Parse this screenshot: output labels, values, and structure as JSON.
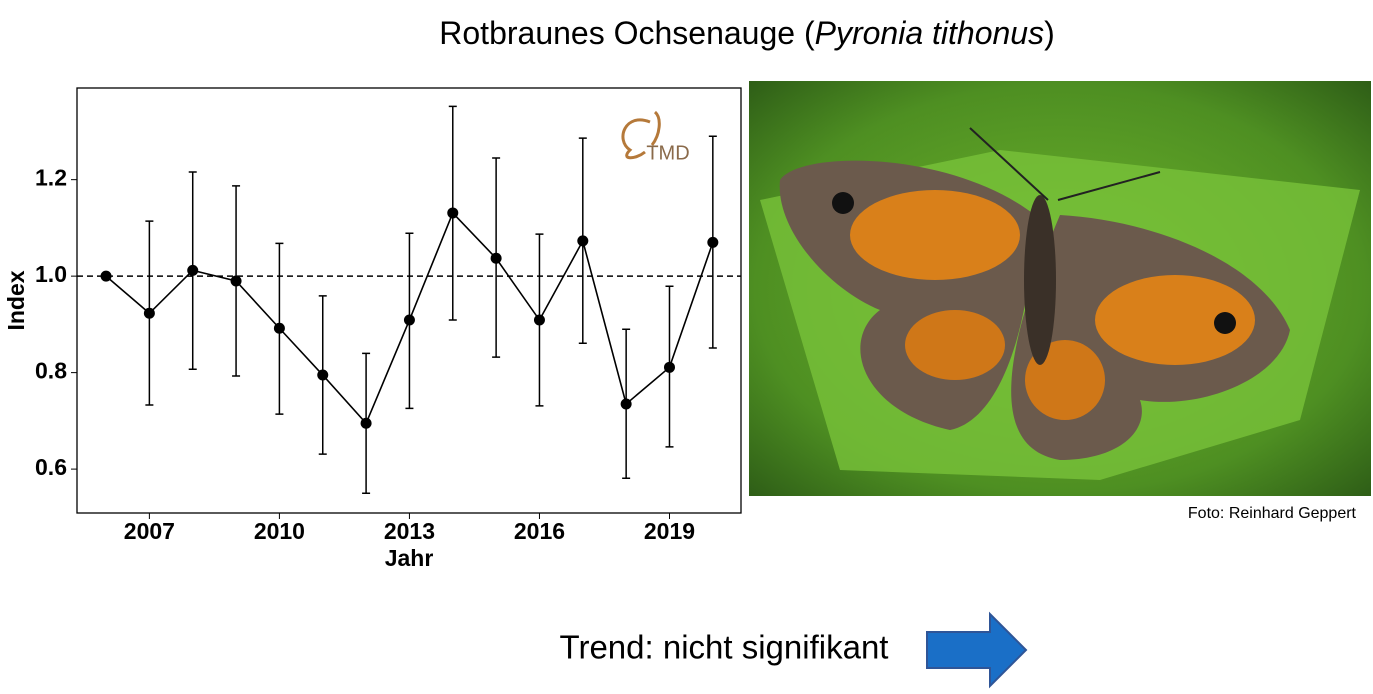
{
  "header": {
    "title": [
      "Rotbraunes Ochsenauge (",
      "Pyronia tithonus",
      ")"
    ]
  },
  "chart_data": {
    "type": "line",
    "xlabel": "Jahr",
    "ylabel": "Index",
    "logo": "TMD",
    "x": [
      2006,
      2007,
      2008,
      2009,
      2010,
      2011,
      2012,
      2013,
      2014,
      2015,
      2016,
      2017,
      2018,
      2019,
      2020
    ],
    "series": [
      {
        "color": "#000000",
        "values": [
          1.0,
          0.923,
          1.012,
          0.99,
          0.892,
          0.795,
          0.695,
          0.909,
          1.131,
          1.037,
          0.909,
          1.073,
          0.735,
          0.811,
          1.07
        ],
        "lower": [
          null,
          0.733,
          0.807,
          0.793,
          0.714,
          0.631,
          0.55,
          0.726,
          0.909,
          0.832,
          0.731,
          0.861,
          0.581,
          0.646,
          0.851
        ],
        "upper": [
          null,
          1.114,
          1.216,
          1.187,
          1.068,
          0.959,
          0.84,
          1.089,
          1.352,
          1.245,
          1.087,
          1.286,
          0.89,
          0.979,
          1.29
        ]
      }
    ],
    "xlim": [
      2005.33,
      2020.65
    ],
    "xticks": [
      2007,
      2010,
      2013,
      2016,
      2019
    ],
    "ylim": [
      0.509,
      1.39
    ],
    "yticks": [
      0.6,
      0.8,
      {
        "value": 1.0,
        "label": "1.0"
      },
      1.2
    ],
    "reference_line": 1.0,
    "grid": false
  },
  "photo": {
    "credit": "Foto: Reinhard Geppert"
  },
  "trend": {
    "text": "Trend: nicht signifikant"
  }
}
